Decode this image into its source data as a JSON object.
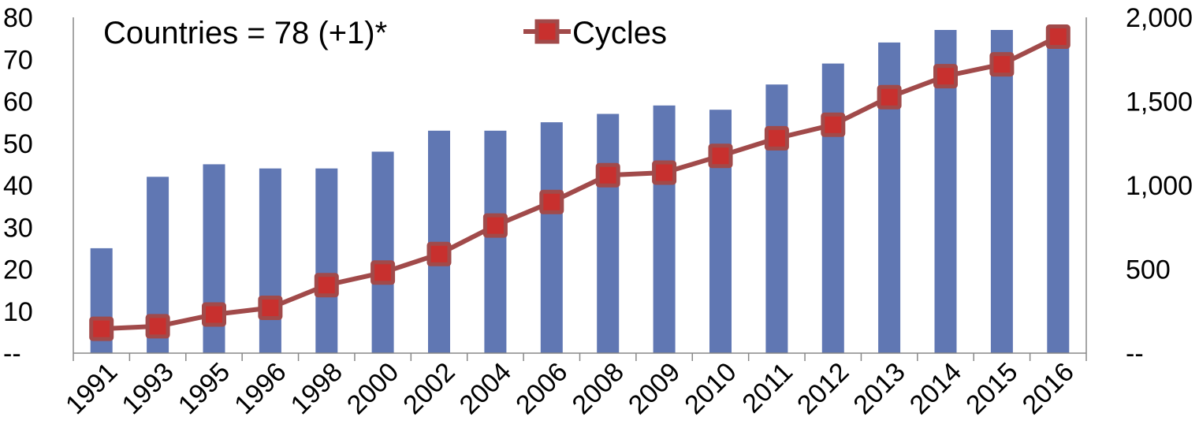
{
  "chart_data": {
    "type": "bar",
    "categories": [
      "1991",
      "1993",
      "1995",
      "1996",
      "1998",
      "2000",
      "2002",
      "2004",
      "2006",
      "2008",
      "2009",
      "2010",
      "2011",
      "2012",
      "2013",
      "2014",
      "2015",
      "2016"
    ],
    "series": [
      {
        "values": [
          25,
          42,
          45,
          44,
          44,
          48,
          53,
          53,
          55,
          57,
          59,
          58,
          64,
          69,
          74,
          77,
          77,
          78
        ],
        "type": "bar",
        "axis": "left",
        "color": "#6077b3"
      },
      {
        "name": "Cycles",
        "values": [
          145,
          160,
          230,
          270,
          405,
          480,
          590,
          760,
          900,
          1060,
          1075,
          1175,
          1280,
          1360,
          1525,
          1650,
          1720,
          1885
        ],
        "type": "line",
        "axis": "right",
        "color": "#a14a4a",
        "marker_color": "#c8302e"
      }
    ],
    "y_left": {
      "lim": [
        0,
        80
      ],
      "ticks": [
        "--",
        "10",
        "20",
        "30",
        "40",
        "50",
        "60",
        "70",
        "80"
      ]
    },
    "y_right": {
      "lim": [
        0,
        2000
      ],
      "ticks": [
        "--",
        "500",
        "1,000",
        "1,500",
        "2,000"
      ]
    },
    "annotation": "Countries = 78 (+1)*",
    "legend": {
      "position": "top-center",
      "entries": [
        "Cycles"
      ]
    },
    "grid": false
  }
}
